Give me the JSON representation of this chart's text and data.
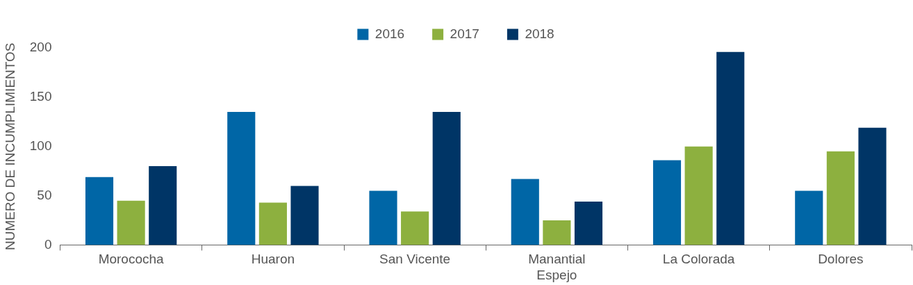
{
  "chart_data": {
    "type": "bar",
    "ylabel": "NUMERO DE INCUMPLIMIENTOS",
    "categories": [
      "Morococha",
      "Huaron",
      "San Vicente",
      "Manantial Espejo",
      "La Colorada",
      "Dolores"
    ],
    "series": [
      {
        "name": "2016",
        "color": "#0066a6",
        "values": [
          69,
          135,
          55,
          67,
          86,
          55
        ]
      },
      {
        "name": "2017",
        "color": "#8db03f",
        "values": [
          45,
          43,
          34,
          25,
          100,
          95
        ]
      },
      {
        "name": "2018",
        "color": "#003566",
        "values": [
          80,
          60,
          135,
          44,
          196,
          119
        ]
      }
    ],
    "ylim": [
      0,
      200
    ],
    "yticks": [
      0,
      50,
      100,
      150,
      200
    ],
    "legend": "top"
  }
}
